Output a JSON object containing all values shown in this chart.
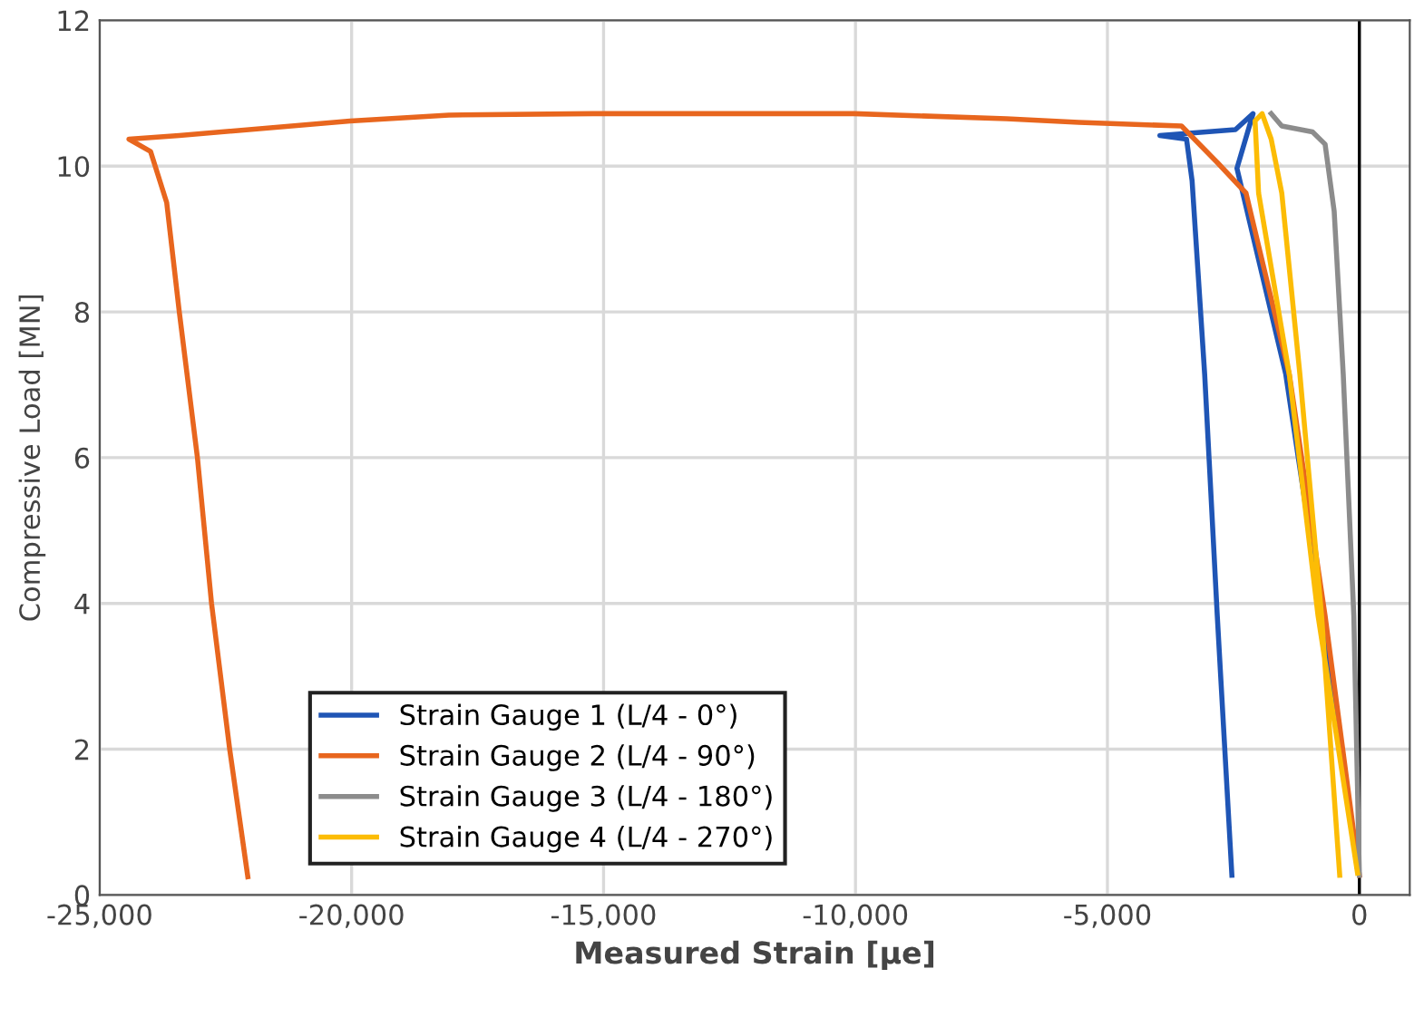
{
  "chart_data": {
    "type": "line",
    "xlabel": "Measured Strain [µe]",
    "ylabel": "Compressive Load [MN]",
    "xlim": [
      -25000,
      1000
    ],
    "ylim": [
      0,
      12
    ],
    "xticks": [
      {
        "value": -25000,
        "label": "-25,000"
      },
      {
        "value": -20000,
        "label": "-20,000"
      },
      {
        "value": -15000,
        "label": "-15,000"
      },
      {
        "value": -10000,
        "label": "-10,000"
      },
      {
        "value": -5000,
        "label": "-5,000"
      },
      0
    ],
    "yticks": [
      0,
      2,
      4,
      6,
      8,
      10,
      12
    ],
    "grid": true,
    "legend": "bottom left",
    "marker": "none",
    "line_style": "solid",
    "ref_lines": [
      {
        "axis": "x",
        "value": 0,
        "color": "#000000"
      }
    ],
    "series": [
      {
        "name": "Strain Gauge 1 (L/4 - 0°)",
        "color": "#1f55b5",
        "x": [
          -36,
          -740,
          -1460,
          -2430,
          -2110,
          -2460,
          -3960,
          -3430,
          -3320,
          -3070,
          -2820,
          -2530
        ],
        "values": [
          0.35,
          3.83,
          7.14,
          9.97,
          10.72,
          10.5,
          10.42,
          10.37,
          9.8,
          7.14,
          3.83,
          0.27
        ]
      },
      {
        "name": "Strain Gauge 2 (L/4 - 90°)",
        "color": "#e8661e",
        "x": [
          0,
          -680,
          -1390,
          -2250,
          -2820,
          -3530,
          -5570,
          -7000,
          -10030,
          -15210,
          -18070,
          -20030,
          -23420,
          -24420,
          -23990,
          -23670,
          -23420,
          -23060,
          -22780,
          -22420,
          -22060
        ],
        "values": [
          0.27,
          3.83,
          7.14,
          9.63,
          10.05,
          10.55,
          10.6,
          10.65,
          10.72,
          10.72,
          10.7,
          10.62,
          10.42,
          10.37,
          10.2,
          9.5,
          8,
          6,
          4,
          2,
          0.25
        ]
      },
      {
        "name": "Strain Gauge 3 (L/4 - 180°)",
        "color": "#8c8c8c",
        "x": [
          0,
          -110,
          -320,
          -500,
          -680,
          -930,
          -1540,
          -1750
        ],
        "values": [
          0.27,
          3.83,
          7.14,
          9.38,
          10.3,
          10.47,
          10.55,
          10.72
        ]
      },
      {
        "name": "Strain Gauge 4 (L/4 - 270°)",
        "color": "#fcbc05",
        "x": [
          -36,
          -820,
          -1390,
          -2000,
          -2070,
          -1930,
          -1750,
          -1540,
          -1180,
          -750,
          -390
        ],
        "values": [
          0.3,
          3.83,
          7.14,
          9.63,
          10.62,
          10.72,
          10.37,
          9.63,
          7.14,
          3.83,
          0.27
        ]
      }
    ]
  }
}
